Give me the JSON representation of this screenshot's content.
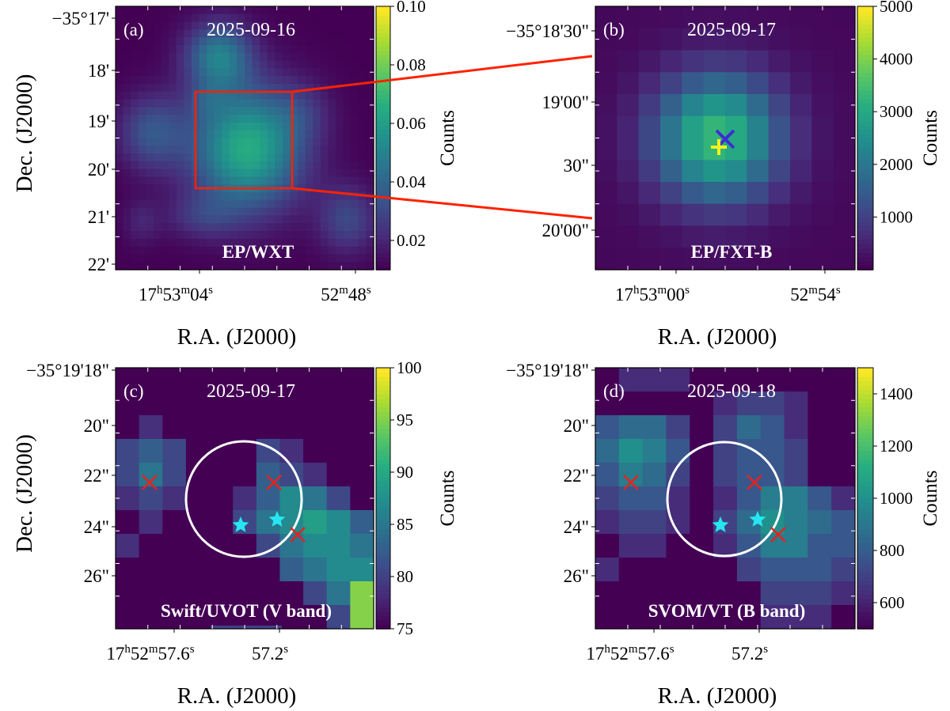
{
  "chart_data": [
    {
      "type": "heatmap",
      "panel": "(a)",
      "date": "2025-09-16",
      "instrument": "EP/WXT",
      "xlabel": "R.A. (J2000)",
      "ylabel": "Dec. (J2000)",
      "xticks": [
        {
          "h": "17",
          "m": "53",
          "s": "04",
          "label_style": "hms"
        },
        {
          "h": "",
          "m": "52",
          "s": "48",
          "label_style": "ms"
        }
      ],
      "yticks": [
        "−35°17'",
        "18'",
        "19'",
        "20'",
        "21'",
        "22'"
      ],
      "colorbar": {
        "label": "Counts",
        "ticks": [
          "0.02",
          "0.04",
          "0.06",
          "0.08",
          "0.10"
        ],
        "vmin": 0.01,
        "vmax": 0.1,
        "colormap": "viridis"
      },
      "zoom_box": {
        "ra_hms": [
          "17h53m00s",
          "17h52m54s"
        ],
        "dec": [
          "−35°18'30\"",
          "−35°20'30\""
        ],
        "color": "#ff2200"
      },
      "sources": [
        {
          "desc": "main source",
          "ra_offset_arcmin": 0.0,
          "dec_offset_arcmin": 0.0,
          "peak_counts": 0.067
        },
        {
          "desc": "north blob",
          "ra_offset_arcmin": 0.65,
          "dec_offset_arcmin": 2.4,
          "peak_counts": 0.05
        },
        {
          "desc": "west blob",
          "ra_offset_arcmin": 2.5,
          "dec_offset_arcmin": 0.35,
          "peak_counts": 0.035
        },
        {
          "desc": "southeast blob",
          "ra_offset_arcmin": -2.4,
          "dec_offset_arcmin": -1.3,
          "peak_counts": 0.03
        }
      ]
    },
    {
      "type": "heatmap",
      "panel": "(b)",
      "date": "2025-09-17",
      "instrument": "EP/FXT-B",
      "xlabel": "R.A. (J2000)",
      "ylabel": "",
      "xticks": [
        {
          "h": "17",
          "m": "53",
          "s": "00",
          "label_style": "hms"
        },
        {
          "h": "",
          "m": "52",
          "s": "54",
          "label_style": "ms"
        }
      ],
      "yticks": [
        "−35°18'30\"",
        "19'00\"",
        "30\"",
        "20'00\""
      ],
      "colorbar": {
        "label": "Counts",
        "ticks": [
          "1000",
          "2000",
          "3000",
          "4000",
          "5000"
        ],
        "vmin": 0,
        "vmax": 5000,
        "colormap": "viridis"
      },
      "peak_counts": 3300,
      "markers": [
        {
          "symbol": "x",
          "color": "#3b2fd0",
          "desc": "blue cross"
        },
        {
          "symbol": "+",
          "color": "#f4f41a",
          "desc": "yellow plus"
        }
      ]
    },
    {
      "type": "heatmap",
      "panel": "(c)",
      "date": "2025-09-17",
      "instrument": "Swift/UVOT (V band)",
      "xlabel": "R.A. (J2000)",
      "ylabel": "Dec. (J2000)",
      "xticks": [
        {
          "h": "17",
          "m": "52",
          "s": "57.6",
          "label_style": "hms"
        },
        {
          "h": "",
          "m": "",
          "s": "57.2",
          "label_style": "s"
        }
      ],
      "yticks": [
        "−35°19'18\"",
        "20\"",
        "22\"",
        "24\"",
        "26\""
      ],
      "colorbar": {
        "label": "Counts",
        "ticks": [
          "75",
          "80",
          "85",
          "90",
          "95",
          "100"
        ],
        "vmin": 75,
        "vmax": 100,
        "colormap": "viridis"
      },
      "circle_color": "#ffffff",
      "markers": [
        {
          "symbol": "x",
          "color": "#e8221c"
        },
        {
          "symbol": "x",
          "color": "#e8221c"
        },
        {
          "symbol": "x",
          "color": "#e8221c"
        },
        {
          "symbol": "star",
          "color": "#27e6f2"
        },
        {
          "symbol": "star",
          "color": "#27e6f2"
        }
      ]
    },
    {
      "type": "heatmap",
      "panel": "(d)",
      "date": "2025-09-18",
      "instrument": "SVOM/VT (B band)",
      "xlabel": "R.A. (J2000)",
      "ylabel": "",
      "xticks": [
        {
          "h": "17",
          "m": "52",
          "s": "57.6",
          "label_style": "hms"
        },
        {
          "h": "",
          "m": "",
          "s": "57.2",
          "label_style": "s"
        }
      ],
      "yticks": [
        "−35°19'18\"",
        "20\"",
        "22\"",
        "24\"",
        "26\""
      ],
      "colorbar": {
        "label": "Counts",
        "ticks": [
          "600",
          "800",
          "1000",
          "1200",
          "1400"
        ],
        "vmin": 500,
        "vmax": 1500,
        "colormap": "viridis"
      },
      "circle_color": "#ffffff",
      "markers": [
        {
          "symbol": "x",
          "color": "#e8221c"
        },
        {
          "symbol": "x",
          "color": "#e8221c"
        },
        {
          "symbol": "x",
          "color": "#e8221c"
        },
        {
          "symbol": "star",
          "color": "#27e6f2"
        },
        {
          "symbol": "star",
          "color": "#27e6f2"
        }
      ]
    }
  ]
}
